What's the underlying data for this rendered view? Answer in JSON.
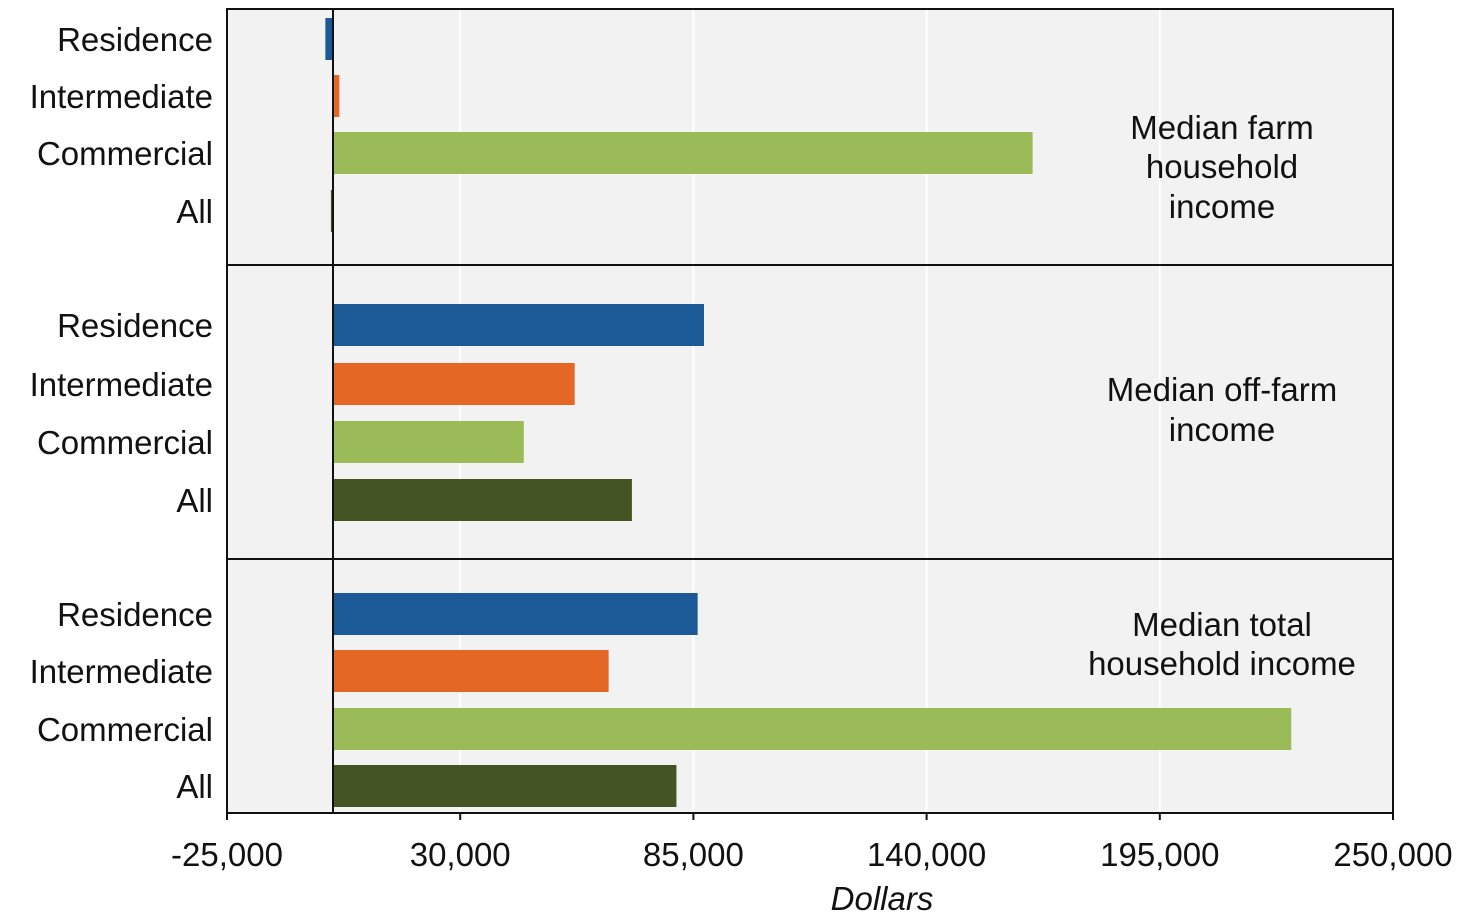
{
  "colors": {
    "residence": "#1b5a96",
    "intermediate": "#e46726",
    "commercial": "#9bbb59",
    "all": "#445424",
    "panel_bg": "#f2f2f2",
    "gridline": "#ffffff",
    "frame": "#111111"
  },
  "chart_data": {
    "type": "bar",
    "orientation": "horizontal",
    "categories": [
      "Residence",
      "Intermediate",
      "Commercial",
      "All"
    ],
    "panels": [
      {
        "label": "Median farm household income",
        "values": [
          -1800,
          1500,
          165000,
          -500
        ]
      },
      {
        "label": "Median off-farm income",
        "values": [
          87500,
          57000,
          45000,
          70500
        ]
      },
      {
        "label": "Median total household income",
        "values": [
          86000,
          65000,
          226000,
          81000
        ]
      }
    ],
    "xlabel": "Dollars",
    "xlim": [
      -25000,
      250000
    ],
    "xticks": [
      -25000,
      30000,
      85000,
      140000,
      195000,
      250000
    ],
    "xtick_labels": [
      "-25,000",
      "30,000",
      "85,000",
      "140,000",
      "195,000",
      "250,000"
    ],
    "grid": "vertical",
    "legend": "none"
  }
}
